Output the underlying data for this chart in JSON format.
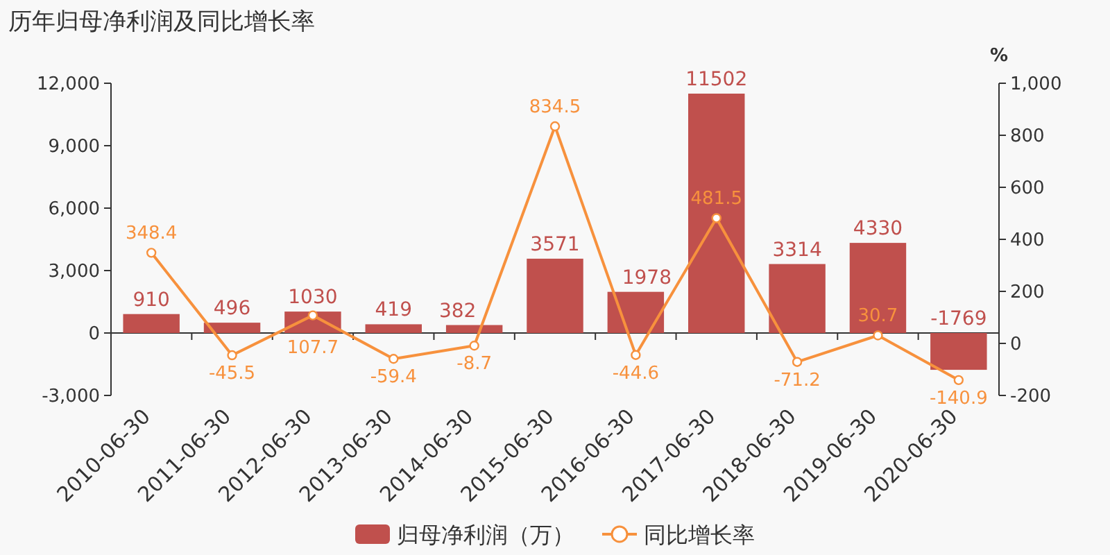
{
  "chart_data": {
    "type": "bar",
    "title": "历年归母净利润及同比增长率",
    "y2label": "%",
    "categories": [
      "2010-06-30",
      "2011-06-30",
      "2012-06-30",
      "2013-06-30",
      "2014-06-30",
      "2015-06-30",
      "2016-06-30",
      "2017-06-30",
      "2018-06-30",
      "2019-06-30",
      "2020-06-30"
    ],
    "series": [
      {
        "name": "归母净利润（万）",
        "color": "#c0504d",
        "values": [
          910,
          496,
          1030,
          419,
          382,
          3571,
          1978,
          11502,
          3314,
          4330,
          -1769
        ]
      },
      {
        "name": "同比增长率",
        "type": "line",
        "axis": "y2",
        "color": "#f7913d",
        "marker": "circle",
        "values": [
          348.4,
          -45.5,
          107.7,
          -59.4,
          -8.7,
          834.5,
          -44.6,
          481.5,
          -71.2,
          30.7,
          -140.9
        ]
      }
    ],
    "ylim": [
      -3000,
      12000
    ],
    "yticks": [
      {
        "value": -3000,
        "label": "-3,000"
      },
      0,
      {
        "value": 3000,
        "label": "3,000"
      },
      {
        "value": 6000,
        "label": "6,000"
      },
      {
        "value": 9000,
        "label": "9,000"
      },
      {
        "value": 12000,
        "label": "12,000"
      }
    ],
    "y2lim": [
      -200,
      1000
    ],
    "y2ticks": [
      -200,
      0,
      200,
      400,
      600,
      800,
      {
        "value": 1000,
        "label": "1,000"
      }
    ],
    "data_labels": true,
    "legend": "bottom"
  }
}
